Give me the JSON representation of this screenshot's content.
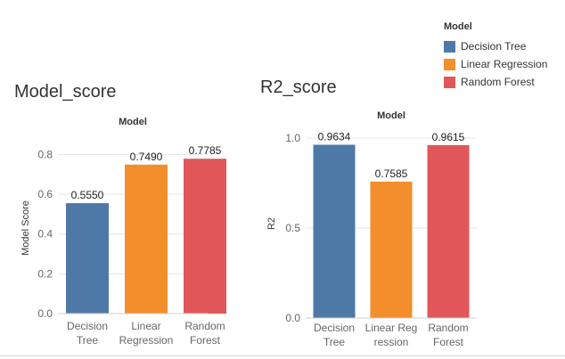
{
  "legend": {
    "title": "Model",
    "items": [
      {
        "label": "Decision Tree",
        "color": "#4e79a7"
      },
      {
        "label": "Linear Regression",
        "color": "#f28e2b"
      },
      {
        "label": "Random Forest",
        "color": "#e15759"
      }
    ]
  },
  "chart_data": [
    {
      "type": "bar",
      "title": "Model_score",
      "header": "Model",
      "ylabel": "Model Score",
      "categories": [
        [
          "Decision",
          "Tree"
        ],
        [
          "Linear",
          "Regression"
        ],
        [
          "Random",
          "Forest"
        ]
      ],
      "values": [
        0.555,
        0.749,
        0.7785
      ],
      "value_labels": [
        "0.5550",
        "0.7490",
        "0.7785"
      ],
      "colors": [
        "#4e79a7",
        "#f28e2b",
        "#e15759"
      ],
      "ylim": [
        0,
        0.86
      ],
      "yticks": [
        0.0,
        0.2,
        0.4,
        0.6,
        0.8
      ],
      "ytick_labels": [
        "0.0",
        "0.2",
        "0.4",
        "0.6",
        "0.8"
      ],
      "grid": true
    },
    {
      "type": "bar",
      "title": "R2_score",
      "header": "Model",
      "ylabel": "R2",
      "categories": [
        [
          "Decision",
          "Tree"
        ],
        [
          "Linear Reg",
          "ression"
        ],
        [
          "Random",
          "Forest"
        ]
      ],
      "values": [
        0.9634,
        0.7585,
        0.9615
      ],
      "value_labels": [
        "0.9634",
        "0.7585",
        "0.9615"
      ],
      "colors": [
        "#4e79a7",
        "#f28e2b",
        "#e15759"
      ],
      "ylim": [
        0,
        1.05
      ],
      "yticks": [
        0.0,
        0.5,
        1.0
      ],
      "ytick_labels": [
        "0.0",
        "0.5",
        "1.0"
      ],
      "grid": true
    }
  ]
}
